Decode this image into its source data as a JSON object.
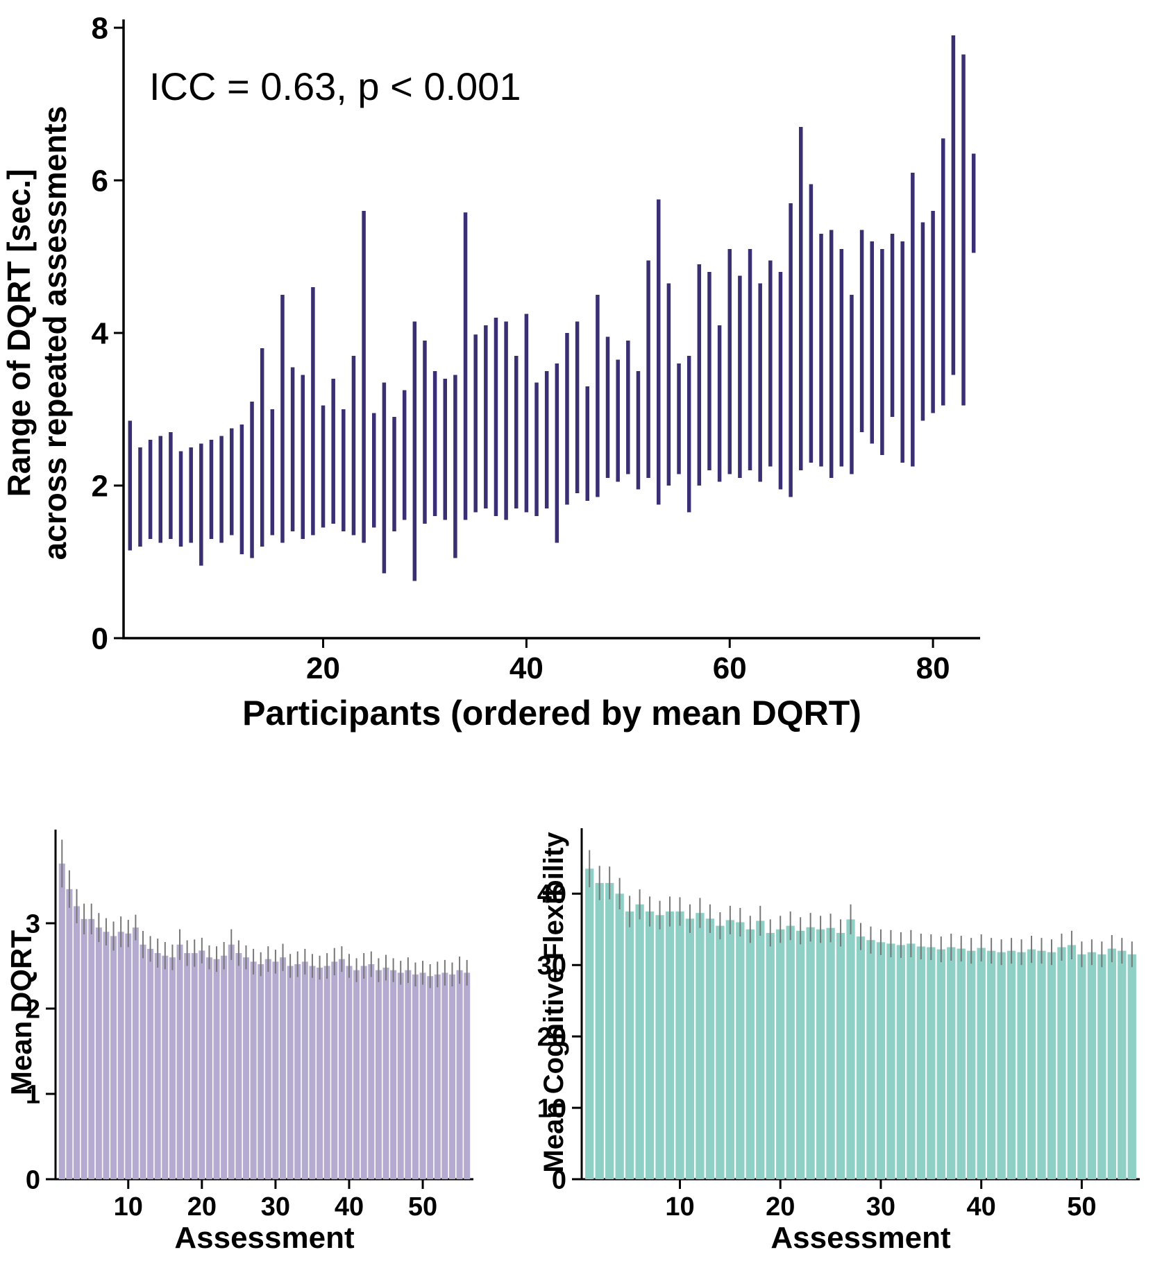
{
  "figure": {
    "colors": {
      "range_segment": "#3b2f73",
      "dqrt_bar": "#b5aacf",
      "flex_bar": "#8ed0c6",
      "error_bar": "#777777",
      "axis": "#000000"
    }
  },
  "chart_data": [
    {
      "id": "dqrt-range-plot",
      "type": "range-bar",
      "annotation": "ICC = 0.63, p < 0.001",
      "xlabel": "Participants (ordered by mean DQRT)",
      "ylabel": "Range of DQRT [sec.] across repeated assessments",
      "ylabel_lines": [
        "Range of DQRT [sec.]",
        "across repeated assessments"
      ],
      "ylim": [
        0,
        8
      ],
      "y_ticks": [
        0,
        2,
        4,
        6,
        8
      ],
      "x_ticks": [
        20,
        40,
        60,
        80
      ],
      "n": 84,
      "grid": false,
      "legend": false,
      "series": [
        {
          "name": "range_low",
          "values": [
            1.15,
            1.2,
            1.3,
            1.25,
            1.3,
            1.2,
            1.25,
            0.95,
            1.3,
            1.25,
            1.35,
            1.1,
            1.05,
            1.2,
            1.35,
            1.25,
            1.4,
            1.3,
            1.35,
            1.45,
            1.5,
            1.4,
            1.35,
            1.25,
            1.45,
            0.85,
            1.4,
            1.55,
            0.75,
            1.5,
            1.6,
            1.55,
            1.05,
            1.55,
            1.65,
            1.7,
            1.6,
            1.55,
            1.7,
            1.65,
            1.6,
            1.7,
            1.25,
            1.75,
            1.9,
            1.8,
            1.85,
            2.1,
            2.05,
            2.15,
            1.95,
            2.1,
            1.75,
            2.0,
            2.15,
            1.65,
            2.0,
            2.2,
            2.05,
            2.15,
            2.1,
            2.2,
            2.05,
            2.25,
            1.95,
            1.85,
            2.2,
            2.3,
            2.25,
            2.1,
            2.25,
            2.15,
            2.7,
            2.55,
            2.4,
            2.9,
            2.3,
            2.25,
            2.85,
            2.95,
            3.05,
            3.45,
            3.05,
            5.05
          ]
        },
        {
          "name": "range_high",
          "values": [
            2.85,
            2.5,
            2.6,
            2.65,
            2.7,
            2.45,
            2.5,
            2.55,
            2.6,
            2.65,
            2.75,
            2.8,
            3.1,
            3.8,
            3.0,
            4.5,
            3.55,
            3.45,
            4.6,
            3.05,
            3.4,
            3.0,
            3.7,
            5.6,
            2.95,
            3.35,
            2.9,
            3.25,
            4.15,
            3.9,
            3.5,
            3.4,
            3.45,
            5.58,
            3.98,
            4.1,
            4.2,
            4.15,
            3.7,
            4.25,
            3.35,
            3.5,
            3.6,
            4.0,
            4.15,
            3.3,
            4.5,
            3.95,
            3.65,
            3.9,
            3.5,
            4.95,
            5.75,
            4.65,
            3.6,
            3.7,
            4.9,
            4.8,
            4.1,
            5.1,
            4.75,
            5.1,
            4.65,
            4.95,
            4.8,
            5.7,
            6.7,
            5.95,
            5.3,
            5.35,
            5.1,
            4.5,
            5.35,
            5.2,
            5.1,
            5.3,
            5.2,
            6.1,
            5.45,
            5.6,
            6.55,
            7.9,
            7.65,
            6.35
          ]
        }
      ]
    },
    {
      "id": "mean-dqrt-bars",
      "type": "bar",
      "xlabel": "Assessment",
      "ylabel": "Mean DQRT",
      "ylim": [
        0,
        4
      ],
      "y_ticks": [
        0,
        1,
        2,
        3
      ],
      "x_ticks": [
        10,
        20,
        30,
        40,
        50
      ],
      "grid": false,
      "legend": false,
      "values": [
        3.7,
        3.4,
        3.2,
        3.05,
        3.05,
        2.95,
        2.9,
        2.85,
        2.9,
        2.88,
        2.95,
        2.75,
        2.7,
        2.65,
        2.62,
        2.6,
        2.75,
        2.65,
        2.65,
        2.68,
        2.6,
        2.58,
        2.62,
        2.75,
        2.65,
        2.6,
        2.55,
        2.52,
        2.58,
        2.55,
        2.6,
        2.5,
        2.52,
        2.55,
        2.5,
        2.48,
        2.5,
        2.55,
        2.58,
        2.5,
        2.45,
        2.5,
        2.52,
        2.45,
        2.48,
        2.45,
        2.42,
        2.45,
        2.4,
        2.42,
        2.38,
        2.4,
        2.42,
        2.4,
        2.45,
        2.42
      ],
      "errors": [
        0.28,
        0.22,
        0.2,
        0.18,
        0.18,
        0.17,
        0.16,
        0.17,
        0.18,
        0.16,
        0.15,
        0.16,
        0.15,
        0.17,
        0.16,
        0.15,
        0.18,
        0.15,
        0.16,
        0.15,
        0.14,
        0.15,
        0.16,
        0.18,
        0.15,
        0.14,
        0.15,
        0.14,
        0.15,
        0.14,
        0.16,
        0.14,
        0.15,
        0.15,
        0.14,
        0.14,
        0.15,
        0.16,
        0.15,
        0.14,
        0.14,
        0.15,
        0.15,
        0.14,
        0.15,
        0.14,
        0.14,
        0.15,
        0.14,
        0.14,
        0.14,
        0.15,
        0.15,
        0.14,
        0.16,
        0.15
      ]
    },
    {
      "id": "mean-cognitive-flexibility-bars",
      "type": "bar",
      "xlabel": "Assessment",
      "ylabel": "Mean Cognitive Flexibility",
      "ylim": [
        0,
        48
      ],
      "y_ticks": [
        0,
        10,
        20,
        30,
        40
      ],
      "x_ticks": [
        10,
        20,
        30,
        40,
        50
      ],
      "grid": false,
      "legend": false,
      "values": [
        43.5,
        41.5,
        41.5,
        40.0,
        37.5,
        38.5,
        37.5,
        37.0,
        37.5,
        37.5,
        36.5,
        37.3,
        36.5,
        35.5,
        36.3,
        36.0,
        35.0,
        36.2,
        34.5,
        35.0,
        35.5,
        34.8,
        35.3,
        35.0,
        35.2,
        34.5,
        36.4,
        34.0,
        33.5,
        33.2,
        33.0,
        32.8,
        33.0,
        32.6,
        32.5,
        32.2,
        32.5,
        32.3,
        32.0,
        32.4,
        32.0,
        31.8,
        32.0,
        31.8,
        32.2,
        32.0,
        31.8,
        32.5,
        32.8,
        31.5,
        31.8,
        31.5,
        32.3,
        32.0,
        31.5
      ],
      "errors": [
        2.6,
        2.4,
        2.3,
        2.2,
        2.2,
        2.1,
        2.1,
        2.0,
        2.1,
        2.0,
        2.0,
        2.1,
        2.0,
        1.9,
        2.0,
        2.0,
        1.9,
        2.1,
        1.9,
        1.9,
        2.0,
        1.9,
        2.0,
        1.9,
        2.0,
        1.9,
        2.1,
        1.9,
        1.9,
        1.8,
        1.9,
        1.8,
        1.9,
        1.8,
        1.8,
        1.8,
        1.9,
        1.8,
        1.8,
        1.9,
        1.8,
        1.8,
        1.8,
        1.8,
        1.9,
        1.8,
        1.8,
        1.9,
        2.0,
        1.8,
        1.8,
        1.8,
        1.9,
        1.8,
        1.8
      ]
    }
  ]
}
